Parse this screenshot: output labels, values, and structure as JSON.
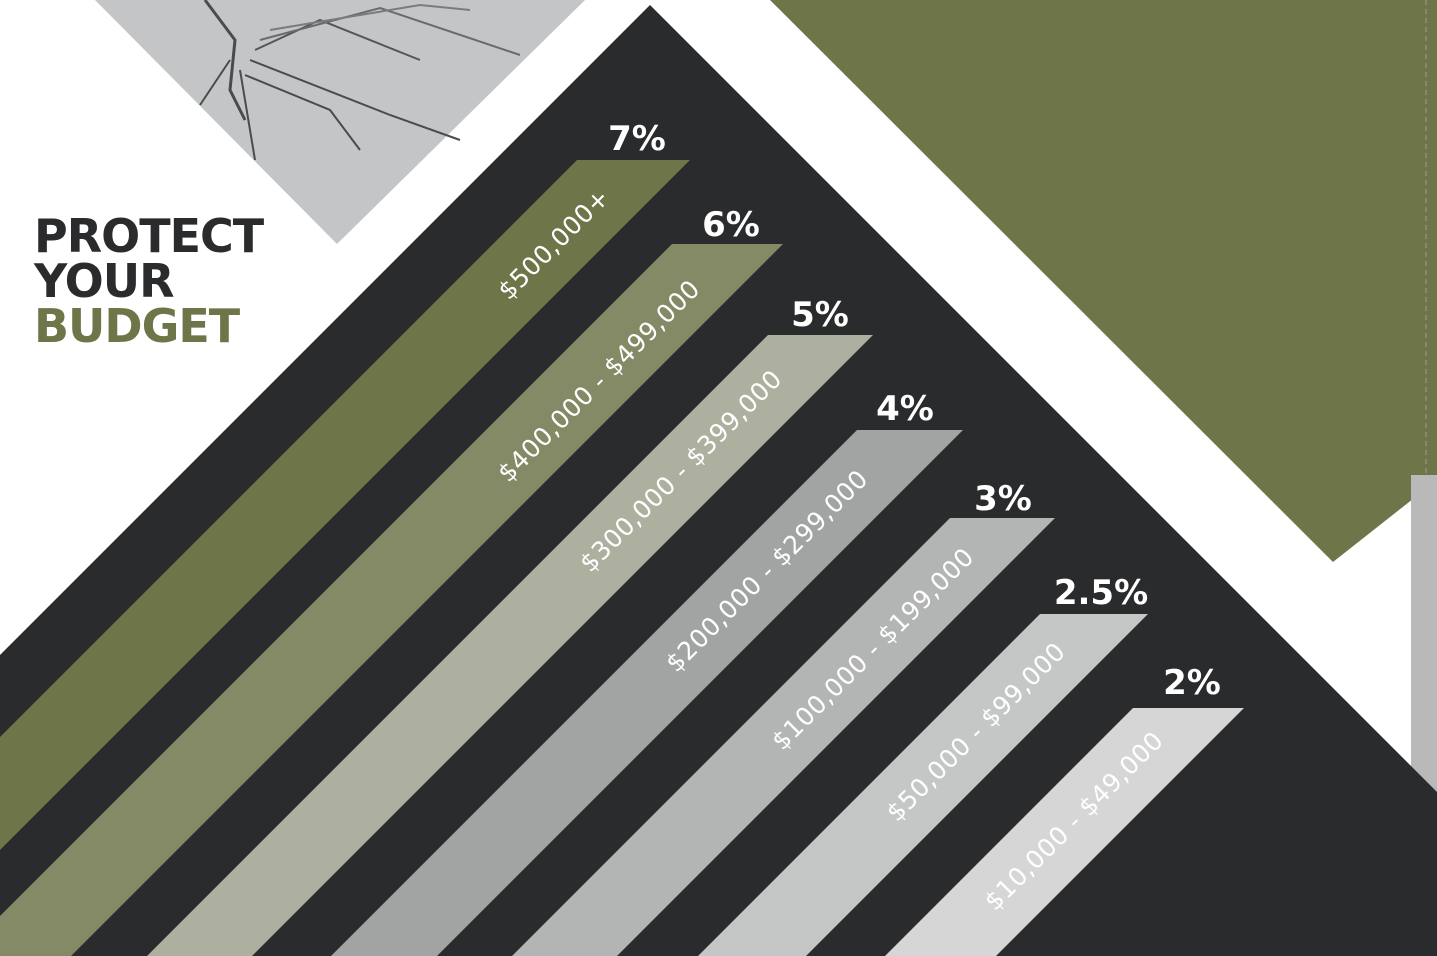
{
  "headline": {
    "line1": "PROTECT",
    "line2": "YOUR",
    "line3": "BUDGET"
  },
  "colors": {
    "dark": "#2a2b2d",
    "olive": "#6e7549",
    "olive_light": "#838a65",
    "sage": "#adb09f",
    "gray": "#a2a4a4",
    "gray_light": "#b3b4b4",
    "gray_lighter": "#c5c6c6",
    "gray_lightest": "#d5d6d5"
  },
  "tiers": [
    {
      "percent": "7%",
      "range": "$500,000+"
    },
    {
      "percent": "6%",
      "range": "$400,000 - $499,000"
    },
    {
      "percent": "5%",
      "range": "$300,000 - $399,000"
    },
    {
      "percent": "4%",
      "range": "$200,000 - $299,000"
    },
    {
      "percent": "3%",
      "range": "$100,000 - $199,000"
    },
    {
      "percent": "2.5%",
      "range": "$50,000 - $99,000"
    },
    {
      "percent": "2%",
      "range": "$10,000 - $49,000"
    }
  ]
}
